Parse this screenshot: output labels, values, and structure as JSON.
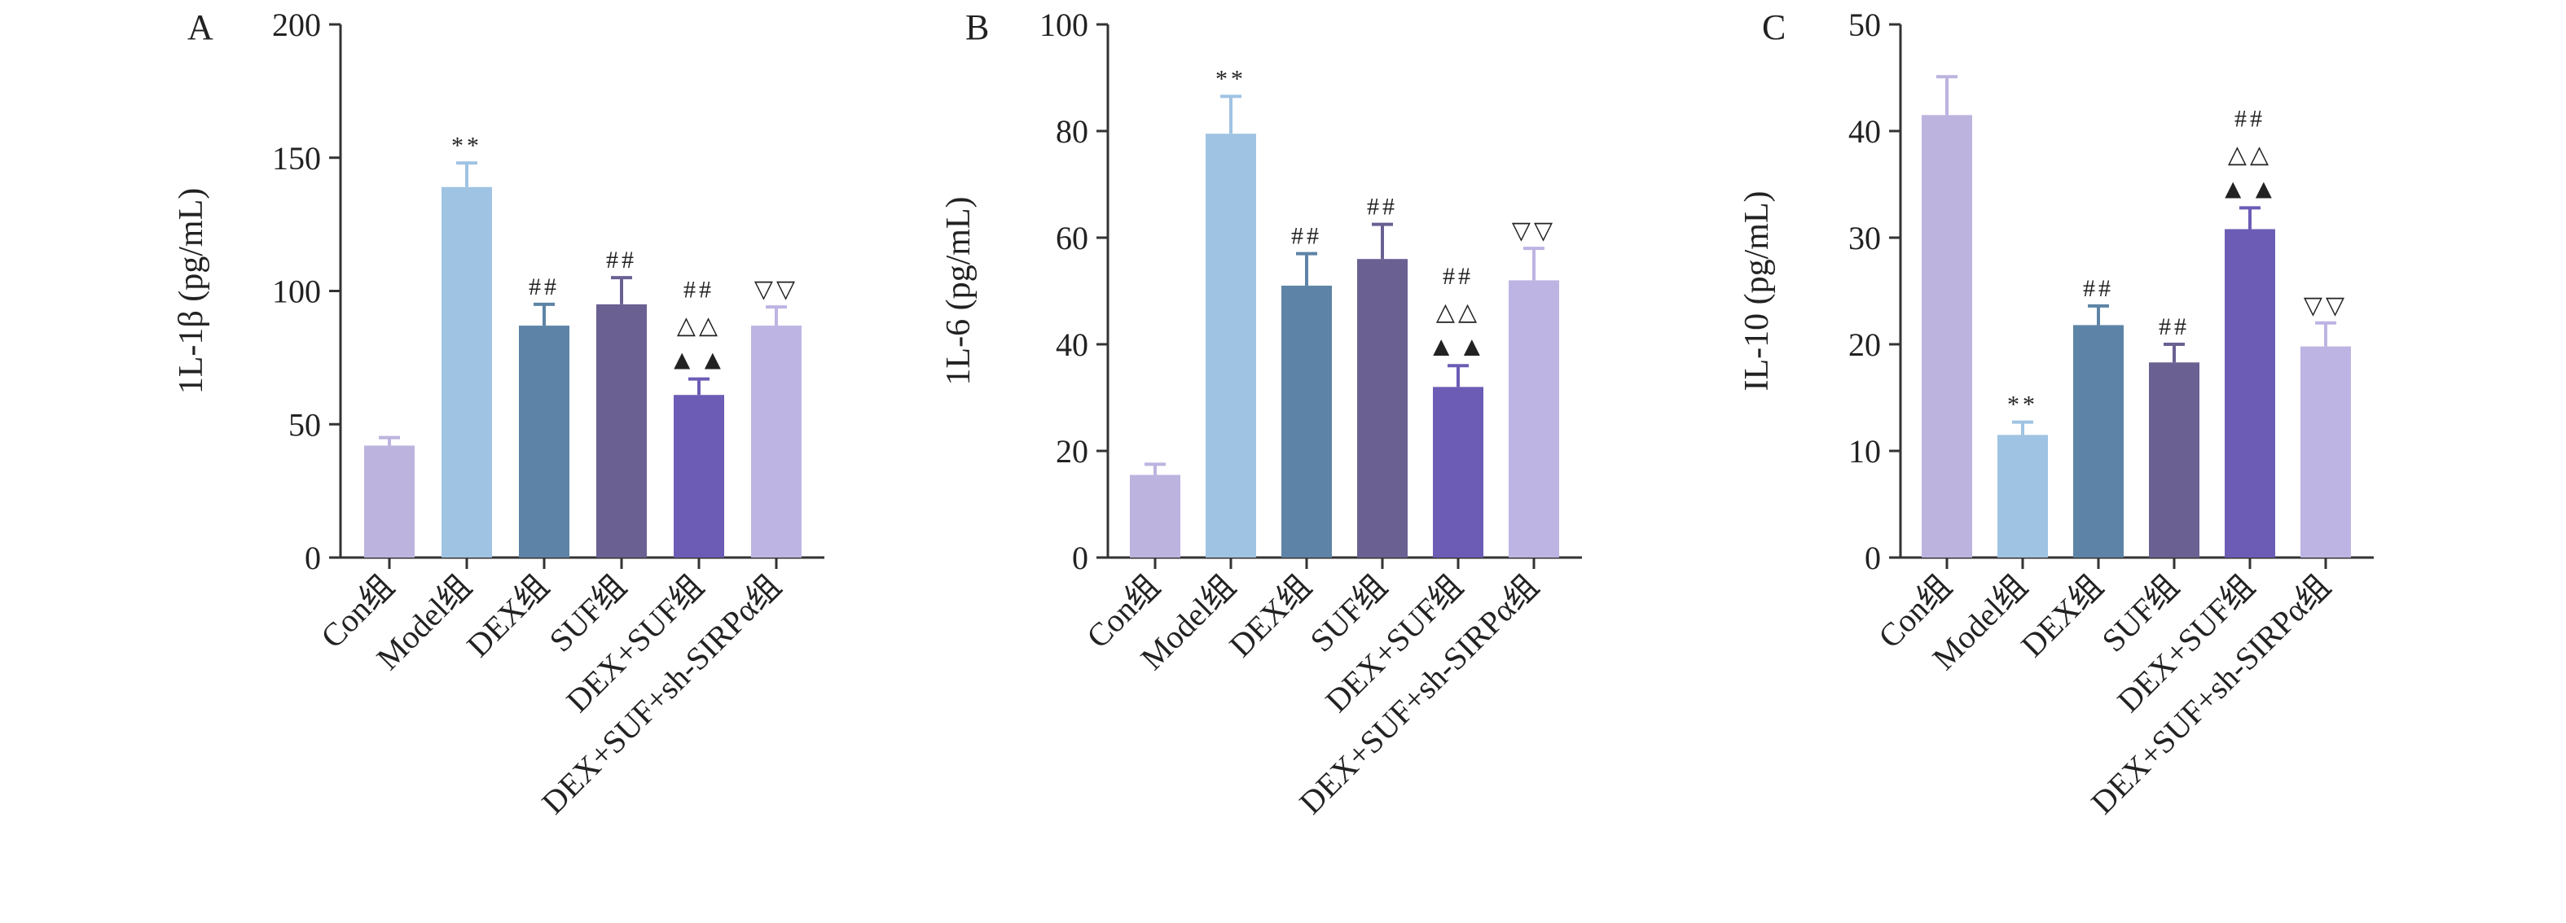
{
  "categories": [
    "Con组",
    "Model组",
    "DEX组",
    "SUF组",
    "DEX+SUF组",
    "DEX+SUF+sh-SIRPα组"
  ],
  "colors": [
    "#bdb3df",
    "#9fc3e3",
    "#5d84a6",
    "#6a6092",
    "#6c5cb5",
    "#beb4e3"
  ],
  "chart_data": [
    {
      "type": "bar",
      "panel_label": "A",
      "ylabel": "1L-1β (pg/mL)",
      "ylim": [
        0,
        200
      ],
      "yticks": [
        0,
        50,
        100,
        150,
        200
      ],
      "categories": [
        "Con组",
        "Model组",
        "DEX组",
        "SUF组",
        "DEX+SUF组",
        "DEX+SUF+sh-SIRPα组"
      ],
      "values": [
        42,
        139,
        87,
        95,
        61,
        87
      ],
      "errors": [
        3,
        9,
        8,
        10,
        6,
        7
      ],
      "annotations": [
        [],
        [
          "**"
        ],
        [
          "##"
        ],
        [
          "##"
        ],
        [
          "##",
          "△△",
          "▲▲"
        ],
        [
          "▽▽"
        ]
      ]
    },
    {
      "type": "bar",
      "panel_label": "B",
      "ylabel": "1L-6 (pg/mL)",
      "ylim": [
        0,
        100
      ],
      "yticks": [
        0,
        20,
        40,
        60,
        80,
        100
      ],
      "categories": [
        "Con组",
        "Model组",
        "DEX组",
        "SUF组",
        "DEX+SUF组",
        "DEX+SUF+sh-SIRPα组"
      ],
      "values": [
        15.5,
        79.5,
        51,
        56,
        32,
        52
      ],
      "errors": [
        2,
        7,
        6,
        6.5,
        4,
        6
      ],
      "annotations": [
        [],
        [
          "**"
        ],
        [
          "##"
        ],
        [
          "##"
        ],
        [
          "##",
          "△△",
          "▲▲"
        ],
        [
          "▽▽"
        ]
      ]
    },
    {
      "type": "bar",
      "panel_label": "C",
      "ylabel": "IL-10 (pg/mL)",
      "ylim": [
        0,
        50
      ],
      "yticks": [
        0,
        10,
        20,
        30,
        40,
        50
      ],
      "categories": [
        "Con组",
        "Model组",
        "DEX组",
        "SUF组",
        "DEX+SUF组",
        "DEX+SUF+sh-SIRPα组"
      ],
      "values": [
        41.5,
        11.5,
        21.8,
        18.3,
        30.8,
        19.8
      ],
      "errors": [
        3.6,
        1.2,
        1.8,
        1.7,
        2.0,
        2.2
      ],
      "annotations": [
        [],
        [
          "**"
        ],
        [
          "##"
        ],
        [
          "##"
        ],
        [
          "##",
          "△△",
          "▲▲"
        ],
        [
          "▽▽"
        ]
      ]
    }
  ]
}
